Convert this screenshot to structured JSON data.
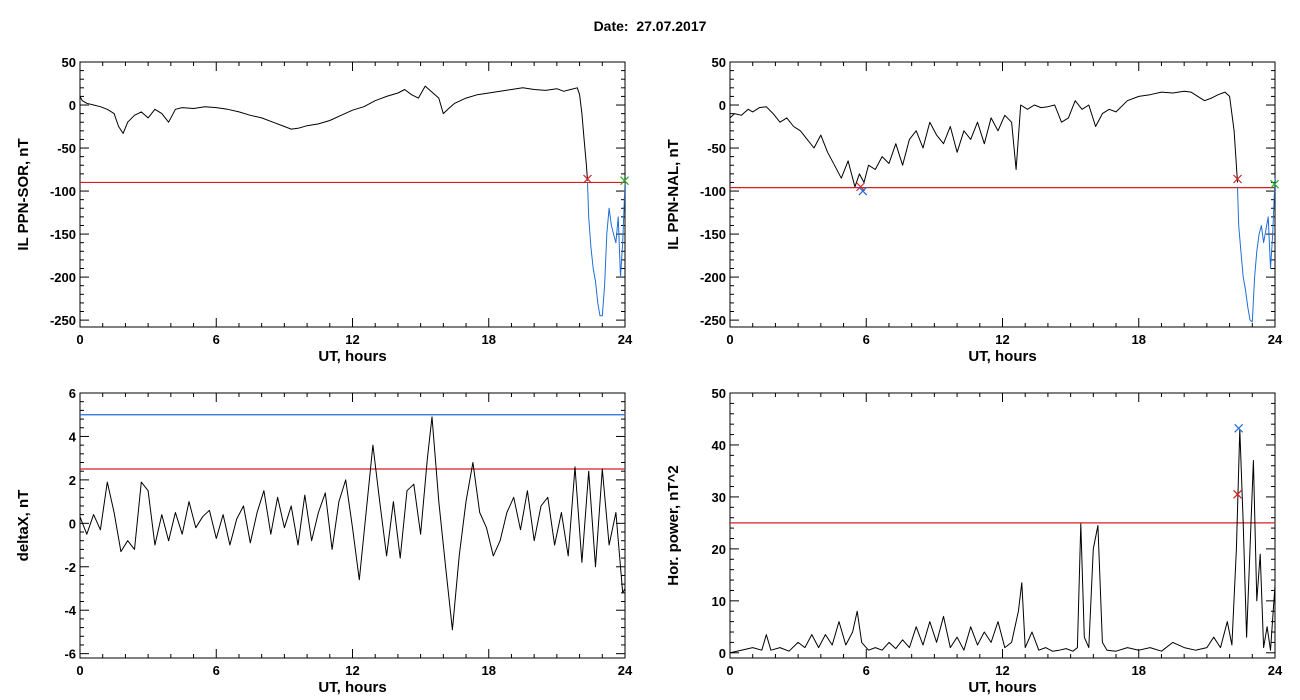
{
  "header": {
    "date_text": "Date:  27.07.2017"
  },
  "colors": {
    "trace": "#000000",
    "threshold_red": "#d62020",
    "threshold_blue": "#1f6fd6",
    "marker_green": "#22aa22"
  },
  "chart_data": [
    {
      "id": "sor",
      "type": "line",
      "xlabel": "UT, hours",
      "ylabel": "IL PPN-SOR, nT",
      "xlim": [
        0,
        24
      ],
      "ylim": [
        -258,
        50
      ],
      "xticks": [
        0,
        6,
        12,
        18,
        24
      ],
      "yticks": [
        50,
        0,
        -50,
        -100,
        -150,
        -200,
        -250
      ],
      "grid": false,
      "series": [
        {
          "color": "#000000",
          "x": [
            0,
            0.1,
            0.3,
            0.6,
            0.9,
            1.2,
            1.5,
            1.7,
            1.9,
            2.1,
            2.4,
            2.7,
            3.0,
            3.3,
            3.6,
            3.9,
            4.2,
            4.5,
            5.0,
            5.5,
            6.0,
            6.5,
            7.0,
            7.5,
            8.0,
            8.5,
            9.0,
            9.3,
            9.6,
            10.0,
            10.5,
            11.0,
            11.5,
            12.0,
            12.5,
            13.0,
            13.5,
            14.0,
            14.3,
            14.6,
            14.9,
            15.2,
            15.5,
            15.8,
            16.0,
            16.2,
            16.5,
            17.0,
            17.5,
            18.0,
            18.5,
            19.0,
            19.5,
            20.0,
            20.5,
            21.0,
            21.3,
            21.6,
            21.9,
            22.0,
            22.1,
            22.2,
            22.3,
            22.35
          ],
          "y": [
            10,
            5,
            2,
            0,
            -2,
            -5,
            -10,
            -25,
            -33,
            -20,
            -12,
            -8,
            -15,
            -5,
            -10,
            -20,
            -5,
            -3,
            -4,
            -2,
            -3,
            -5,
            -8,
            -12,
            -15,
            -20,
            -25,
            -28,
            -27,
            -24,
            -22,
            -18,
            -12,
            -6,
            -2,
            5,
            10,
            14,
            18,
            12,
            8,
            22,
            15,
            8,
            -10,
            -5,
            2,
            8,
            12,
            14,
            16,
            18,
            20,
            18,
            17,
            19,
            16,
            18,
            20,
            12,
            -10,
            -40,
            -70,
            -88
          ]
        },
        {
          "color": "#1f6fd6",
          "x": [
            22.35,
            22.4,
            22.5,
            22.6,
            22.7,
            22.8,
            22.9,
            23.0,
            23.1,
            23.2,
            23.3,
            23.4,
            23.5,
            23.6,
            23.7,
            23.8,
            23.9,
            24.0
          ],
          "y": [
            -90,
            -130,
            -165,
            -190,
            -205,
            -230,
            -245,
            -245,
            -210,
            -150,
            -120,
            -140,
            -150,
            -160,
            -130,
            -200,
            -160,
            -90
          ]
        }
      ],
      "threshold_lines": [
        {
          "color": "#d62020",
          "y": -90
        }
      ],
      "markers": [
        {
          "x": 22.35,
          "y": -86,
          "color": "#d62020"
        },
        {
          "x": 23.98,
          "y": -88,
          "color": "#22aa22"
        }
      ]
    },
    {
      "id": "nal",
      "type": "line",
      "xlabel": "UT, hours",
      "ylabel": "IL PPN-NAL, nT",
      "xlim": [
        0,
        24
      ],
      "ylim": [
        -258,
        50
      ],
      "xticks": [
        0,
        6,
        12,
        18,
        24
      ],
      "yticks": [
        50,
        0,
        -50,
        -100,
        -150,
        -200,
        -250
      ],
      "grid": false,
      "series": [
        {
          "color": "#000000",
          "x": [
            0,
            0.2,
            0.5,
            0.8,
            1.0,
            1.3,
            1.6,
            1.9,
            2.2,
            2.5,
            2.8,
            3.1,
            3.4,
            3.7,
            4.0,
            4.3,
            4.6,
            4.9,
            5.2,
            5.5,
            5.7,
            5.9,
            6.1,
            6.4,
            6.7,
            7.0,
            7.3,
            7.6,
            7.9,
            8.2,
            8.5,
            8.8,
            9.1,
            9.4,
            9.7,
            10.0,
            10.3,
            10.6,
            10.9,
            11.2,
            11.5,
            11.8,
            12.1,
            12.4,
            12.6,
            12.8,
            13.1,
            13.4,
            13.7,
            14.0,
            14.3,
            14.6,
            14.9,
            15.2,
            15.5,
            15.8,
            16.1,
            16.4,
            16.7,
            17.0,
            17.5,
            18.0,
            18.5,
            19.0,
            19.5,
            20.0,
            20.3,
            20.6,
            20.9,
            21.2,
            21.5,
            21.8,
            22.0,
            22.2,
            22.35
          ],
          "y": [
            -15,
            -10,
            -12,
            -5,
            -8,
            -3,
            -2,
            -10,
            -20,
            -15,
            -25,
            -30,
            -40,
            -50,
            -35,
            -55,
            -70,
            -85,
            -65,
            -95,
            -80,
            -90,
            -70,
            -75,
            -60,
            -68,
            -45,
            -70,
            -40,
            -30,
            -50,
            -20,
            -35,
            -45,
            -25,
            -55,
            -30,
            -40,
            -20,
            -45,
            -15,
            -30,
            -12,
            -20,
            -75,
            0,
            -5,
            0,
            -3,
            -2,
            0,
            -20,
            -15,
            5,
            -5,
            0,
            -25,
            -10,
            -5,
            -8,
            5,
            10,
            12,
            15,
            14,
            16,
            15,
            10,
            5,
            8,
            12,
            15,
            10,
            -30,
            -90
          ]
        },
        {
          "color": "#1f6fd6",
          "x": [
            22.35,
            22.4,
            22.5,
            22.6,
            22.7,
            22.8,
            22.9,
            23.0,
            23.1,
            23.2,
            23.3,
            23.4,
            23.5,
            23.6,
            23.7,
            23.8,
            23.9,
            24.0
          ],
          "y": [
            -95,
            -140,
            -170,
            -200,
            -215,
            -235,
            -250,
            -252,
            -200,
            -170,
            -150,
            -140,
            -160,
            -145,
            -130,
            -190,
            -150,
            -85
          ]
        }
      ],
      "threshold_lines": [
        {
          "color": "#d62020",
          "y": -96
        }
      ],
      "markers": [
        {
          "x": 5.75,
          "y": -95,
          "color": "#d62020"
        },
        {
          "x": 5.85,
          "y": -100,
          "color": "#1f6fd6"
        },
        {
          "x": 22.35,
          "y": -86,
          "color": "#d62020"
        },
        {
          "x": 23.98,
          "y": -92,
          "color": "#22aa22"
        }
      ]
    },
    {
      "id": "deltax",
      "type": "line",
      "xlabel": "UT, hours",
      "ylabel": "deltaX, nT",
      "xlim": [
        0,
        24
      ],
      "ylim": [
        -6.2,
        6
      ],
      "xticks": [
        0,
        6,
        12,
        18,
        24
      ],
      "yticks": [
        6,
        4,
        2,
        0,
        -2,
        -4,
        -6
      ],
      "grid": false,
      "series": [
        {
          "color": "#000000",
          "x": [
            0,
            0.3,
            0.6,
            0.9,
            1.2,
            1.5,
            1.8,
            2.1,
            2.4,
            2.7,
            3.0,
            3.3,
            3.6,
            3.9,
            4.2,
            4.5,
            4.8,
            5.1,
            5.4,
            5.7,
            6.0,
            6.3,
            6.6,
            6.9,
            7.2,
            7.5,
            7.8,
            8.1,
            8.4,
            8.7,
            9.0,
            9.3,
            9.6,
            9.9,
            10.2,
            10.5,
            10.8,
            11.1,
            11.4,
            11.7,
            12.0,
            12.3,
            12.6,
            12.9,
            13.2,
            13.5,
            13.8,
            14.1,
            14.4,
            14.7,
            15.0,
            15.3,
            15.5,
            15.8,
            16.1,
            16.4,
            16.7,
            17.0,
            17.3,
            17.6,
            17.9,
            18.2,
            18.5,
            18.8,
            19.1,
            19.4,
            19.7,
            20.0,
            20.3,
            20.6,
            20.9,
            21.2,
            21.5,
            21.8,
            22.1,
            22.4,
            22.7,
            23.0,
            23.3,
            23.6,
            23.9,
            24.0
          ],
          "y": [
            0.3,
            -0.5,
            0.4,
            -0.3,
            1.9,
            0.5,
            -1.3,
            -0.8,
            -1.2,
            1.9,
            1.5,
            -1.0,
            0.4,
            -0.8,
            0.5,
            -0.5,
            1.0,
            -0.2,
            0.3,
            0.6,
            -0.7,
            0.4,
            -1.0,
            0.2,
            0.8,
            -0.9,
            0.5,
            1.5,
            -0.5,
            1.2,
            -0.2,
            0.8,
            -1.0,
            1.3,
            -0.8,
            0.5,
            1.4,
            -1.2,
            1.0,
            2.0,
            -0.2,
            -2.6,
            0.5,
            3.6,
            1.0,
            -1.5,
            1.0,
            -1.6,
            1.5,
            1.8,
            -0.5,
            3.0,
            4.9,
            1.0,
            -2.0,
            -4.9,
            -1.5,
            1.0,
            2.8,
            0.5,
            -0.2,
            -1.5,
            -0.8,
            0.5,
            1.2,
            -0.3,
            1.5,
            -0.8,
            0.8,
            1.2,
            -1.0,
            0.5,
            -1.5,
            2.6,
            -1.8,
            2.4,
            -2.0,
            2.5,
            -1.0,
            0.5,
            -3.2,
            -3.0
          ]
        }
      ],
      "threshold_lines": [
        {
          "color": "#1f6fd6",
          "y": 5.0
        },
        {
          "color": "#d62020",
          "y": 2.5
        }
      ],
      "markers": []
    },
    {
      "id": "hpower",
      "type": "line",
      "xlabel": "UT, hours",
      "ylabel": "Hor. power, nT^2",
      "xlim": [
        0,
        24
      ],
      "ylim": [
        -1,
        50
      ],
      "xticks": [
        0,
        6,
        12,
        18,
        24
      ],
      "yticks": [
        50,
        40,
        30,
        20,
        10,
        0
      ],
      "grid": false,
      "series": [
        {
          "color": "#000000",
          "x": [
            0,
            0.5,
            1.0,
            1.4,
            1.6,
            1.8,
            2.2,
            2.6,
            3.0,
            3.3,
            3.6,
            3.9,
            4.2,
            4.5,
            4.8,
            5.1,
            5.4,
            5.6,
            5.8,
            6.1,
            6.4,
            6.7,
            7.0,
            7.3,
            7.6,
            7.9,
            8.2,
            8.5,
            8.8,
            9.1,
            9.4,
            9.7,
            10.0,
            10.3,
            10.6,
            10.9,
            11.2,
            11.5,
            11.8,
            12.1,
            12.4,
            12.7,
            12.85,
            13.0,
            13.3,
            13.6,
            13.9,
            14.2,
            14.5,
            14.8,
            15.1,
            15.3,
            15.45,
            15.6,
            15.8,
            16.0,
            16.2,
            16.4,
            16.6,
            17.0,
            17.5,
            18.0,
            18.5,
            19.0,
            19.5,
            20.0,
            20.5,
            21.0,
            21.3,
            21.6,
            21.9,
            22.1,
            22.3,
            22.45,
            22.6,
            22.75,
            22.9,
            23.05,
            23.2,
            23.35,
            23.5,
            23.65,
            23.8,
            24.0
          ],
          "y": [
            0,
            0.5,
            1.0,
            0.5,
            3.5,
            0.5,
            1.0,
            0.3,
            2.0,
            1.0,
            3.5,
            1.0,
            3.5,
            1.5,
            6.0,
            1.5,
            4.0,
            8.0,
            2.0,
            0.5,
            1.0,
            0.5,
            2.0,
            0.8,
            2.5,
            1.0,
            5.0,
            1.5,
            6.0,
            2.0,
            7.0,
            1.0,
            3.0,
            0.5,
            5.0,
            1.5,
            4.0,
            2.0,
            6.0,
            1.0,
            2.0,
            8.0,
            13.5,
            1.0,
            4.0,
            0.5,
            1.0,
            0.3,
            0.5,
            0.8,
            0.3,
            1.0,
            24.8,
            3.0,
            1.0,
            20.0,
            24.5,
            2.0,
            0.5,
            0.3,
            1.0,
            0.5,
            1.0,
            0.3,
            2.0,
            1.0,
            0.5,
            1.0,
            3.0,
            1.0,
            6.0,
            1.5,
            20.0,
            43.0,
            25.0,
            3.0,
            20.0,
            37.0,
            10.0,
            19.0,
            1.0,
            5.0,
            0.5,
            13.0
          ]
        }
      ],
      "threshold_lines": [
        {
          "color": "#d62020",
          "y": 25
        }
      ],
      "markers": [
        {
          "x": 22.4,
          "y": 43.2,
          "color": "#1f6fd6"
        },
        {
          "x": 22.35,
          "y": 30.5,
          "color": "#d62020"
        }
      ]
    }
  ]
}
